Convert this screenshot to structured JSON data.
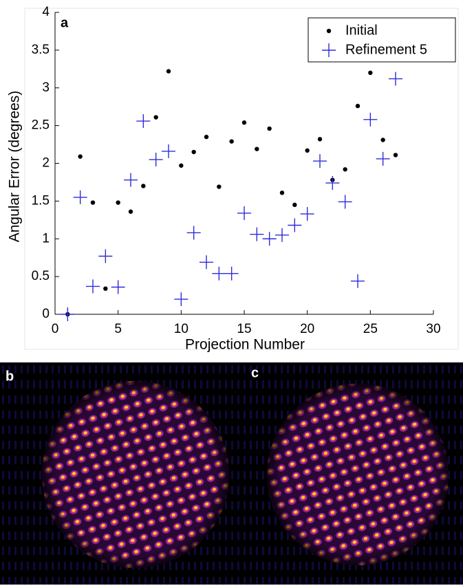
{
  "chart_data": {
    "type": "scatter",
    "panel_label": "a",
    "x_label": "Projection Number",
    "y_label": "Angular Error (degrees)",
    "x": [
      1,
      2,
      3,
      4,
      5,
      6,
      7,
      8,
      9,
      10,
      11,
      12,
      13,
      14,
      15,
      16,
      17,
      18,
      19,
      20,
      21,
      22,
      23,
      24,
      25,
      26,
      27
    ],
    "series": [
      {
        "name": "Initial",
        "color": "#000000",
        "marker": "dot",
        "values": [
          0,
          2.09,
          1.48,
          0.34,
          1.48,
          1.36,
          1.7,
          2.61,
          3.22,
          1.97,
          2.15,
          2.35,
          1.69,
          2.29,
          2.54,
          2.19,
          2.46,
          1.61,
          1.45,
          2.17,
          2.32,
          1.78,
          1.92,
          2.76,
          3.2,
          2.31,
          2.11
        ]
      },
      {
        "name": "Refinement 5",
        "color": "#2b2bdd",
        "marker": "plus",
        "values": [
          0,
          1.55,
          0.37,
          0.77,
          0.36,
          1.78,
          2.56,
          2.05,
          2.16,
          0.2,
          1.08,
          0.69,
          0.54,
          0.54,
          1.34,
          1.06,
          1.0,
          1.05,
          1.18,
          1.33,
          2.03,
          1.74,
          1.49,
          0.44,
          2.58,
          2.06,
          3.12
        ]
      }
    ],
    "xlim": [
      0,
      30
    ],
    "xticks": [
      0,
      5,
      10,
      15,
      20,
      25,
      30
    ],
    "ylim": [
      0,
      4
    ],
    "yticks": [
      0,
      0.5,
      1,
      1.5,
      2,
      2.5,
      3,
      3.5,
      4
    ],
    "legend": "top-right"
  },
  "panels": [
    {
      "label": "b"
    },
    {
      "label": "c"
    }
  ]
}
